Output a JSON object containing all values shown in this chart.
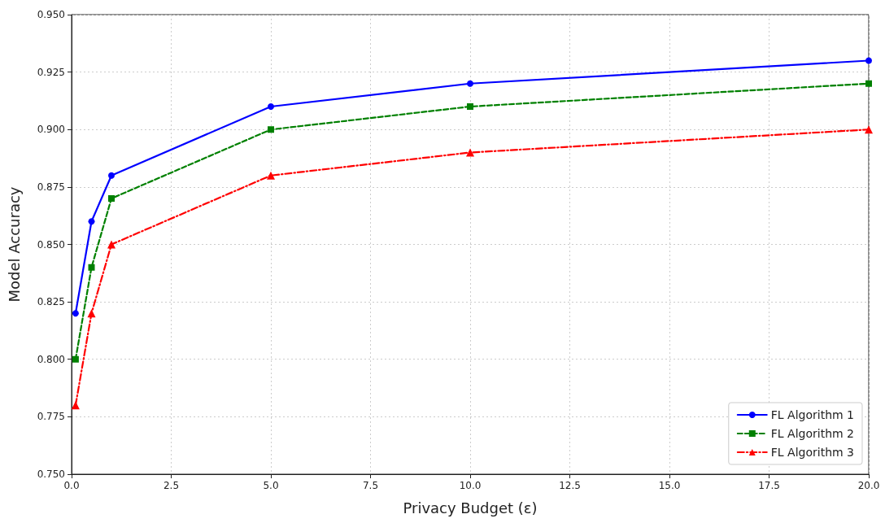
{
  "chart_data": {
    "type": "line",
    "xlabel": "Privacy Budget (ε)",
    "ylabel": "Model Accuracy",
    "x": [
      0.1,
      0.5,
      1,
      5,
      10,
      20
    ],
    "series": [
      {
        "name": "FL Algorithm 1",
        "color": "#0000ff",
        "marker": "circle",
        "line_style": "solid",
        "values": [
          0.82,
          0.86,
          0.88,
          0.91,
          0.92,
          0.93
        ]
      },
      {
        "name": "FL Algorithm 2",
        "color": "#008000",
        "marker": "square",
        "line_style": "dashed",
        "values": [
          0.8,
          0.84,
          0.87,
          0.9,
          0.91,
          0.92
        ]
      },
      {
        "name": "FL Algorithm 3",
        "color": "#ff0000",
        "marker": "triangle",
        "line_style": "dashdot",
        "values": [
          0.78,
          0.82,
          0.85,
          0.88,
          0.89,
          0.9
        ]
      }
    ],
    "xlim": [
      0,
      20
    ],
    "xticks": [
      {
        "value": 0,
        "label": "0.0"
      },
      2.5,
      {
        "value": 5,
        "label": "5.0"
      },
      7.5,
      {
        "value": 10,
        "label": "10.0"
      },
      12.5,
      {
        "value": 15,
        "label": "15.0"
      },
      17.5,
      {
        "value": 20,
        "label": "20.0"
      }
    ],
    "ylim": [
      0.75,
      0.95
    ],
    "yticks": [
      {
        "value": 0.75,
        "label": "0.750"
      },
      0.775,
      {
        "value": 0.8,
        "label": "0.800"
      },
      0.825,
      {
        "value": 0.85,
        "label": "0.850"
      },
      0.875,
      {
        "value": 0.9,
        "label": "0.900"
      },
      0.925,
      {
        "value": 0.95,
        "label": "0.950"
      }
    ],
    "grid": true,
    "legend": "bottom right"
  }
}
